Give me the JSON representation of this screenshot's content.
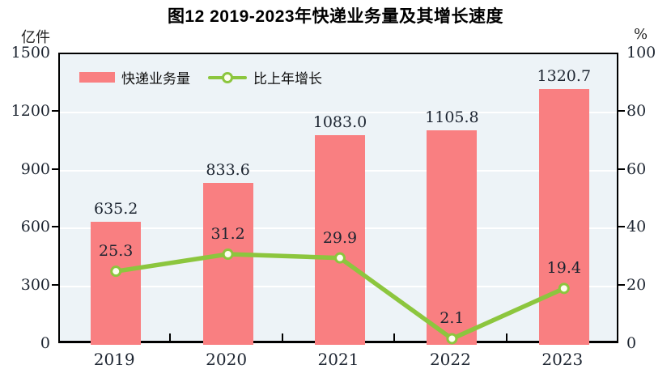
{
  "title": "图12  2019-2023年快递业务量及其增长速度",
  "legend": {
    "bar_label": "快递业务量",
    "line_label": "比上年增长"
  },
  "colors": {
    "bar": "#f97f81",
    "line": "#8cc63e",
    "marker_fill": "#fdfdef",
    "plot_bg": "#edf3f7",
    "grid": "#ffffff",
    "axis": "#000000",
    "text": "#1c2430"
  },
  "chart_data": {
    "type": "bar",
    "subtype": "bar+line dual axis",
    "title": "图12  2019-2023年快递业务量及其增长速度",
    "categories": [
      "2019",
      "2020",
      "2021",
      "2022",
      "2023"
    ],
    "series": [
      {
        "name": "快递业务量",
        "type": "bar",
        "axis": "left",
        "values": [
          635.2,
          833.6,
          1083.0,
          1105.8,
          1320.7
        ]
      },
      {
        "name": "比上年增长",
        "type": "line",
        "axis": "right",
        "values": [
          25.3,
          31.2,
          29.9,
          2.1,
          19.4
        ]
      }
    ],
    "y_left": {
      "unit": "亿件",
      "range": [
        0,
        1500
      ],
      "ticks": [
        0,
        300,
        600,
        900,
        1200,
        1500
      ]
    },
    "y_right": {
      "unit": "%",
      "range": [
        0,
        100
      ],
      "ticks": [
        0,
        20,
        40,
        60,
        80,
        100
      ]
    },
    "grid": true,
    "legend_position": "top-left inside plot",
    "data_labels": true
  }
}
